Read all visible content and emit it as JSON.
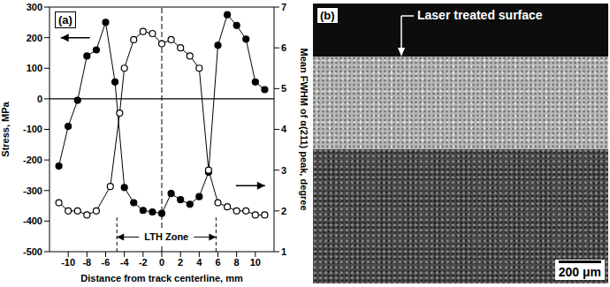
{
  "chart_data": {
    "type": "line",
    "panel": "(a)",
    "xlabel": "Distance from track centerline, mm",
    "ylabel": "Stress, MPa",
    "y2label": "Mean FWHM of α(211) peak, degree",
    "xlim": [
      -12,
      12
    ],
    "xticks": [
      -10,
      -8,
      -6,
      -4,
      -2,
      0,
      2,
      4,
      6,
      8,
      10
    ],
    "ylim": [
      -500,
      300
    ],
    "yticks": [
      -500,
      -400,
      -300,
      -200,
      -100,
      0,
      100,
      200,
      300
    ],
    "y2lim": [
      1,
      7
    ],
    "y2ticks": [
      1,
      2,
      3,
      4,
      5,
      6,
      7
    ],
    "grid": false,
    "reference_lines": {
      "x": [
        0
      ],
      "y": [
        0
      ]
    },
    "annotations": [
      {
        "text": "LTH Zone",
        "x": [
          -4.8,
          5.8
        ]
      }
    ],
    "series": [
      {
        "axis": "y",
        "color": "#000000",
        "marker": "filled_circle",
        "line_style": "solid",
        "x": [
          -11,
          -10,
          -9,
          -8,
          -7,
          -6,
          -5,
          -4,
          -3,
          -2,
          -1,
          0,
          1,
          2,
          3,
          4,
          5,
          6,
          7,
          8,
          9,
          10,
          11
        ],
        "values": [
          -220,
          -90,
          -5,
          140,
          160,
          250,
          55,
          -290,
          -340,
          -365,
          -370,
          -375,
          -310,
          -330,
          -345,
          -320,
          -240,
          175,
          275,
          240,
          195,
          55,
          30
        ]
      },
      {
        "axis": "y2",
        "color": "#000000",
        "marker": "open_circle",
        "line_style": "solid",
        "x": [
          -11,
          -10,
          -9,
          -8,
          -7,
          -5.5,
          -4.5,
          -4,
          -3,
          -2,
          -1,
          0,
          1,
          2,
          3,
          4,
          5,
          6,
          7,
          8,
          9,
          10,
          11
        ],
        "values": [
          2.2,
          2.0,
          2.0,
          1.9,
          2.0,
          2.6,
          4.4,
          5.5,
          6.2,
          6.4,
          6.35,
          6.1,
          6.2,
          6.0,
          5.8,
          5.5,
          3.0,
          2.2,
          2.1,
          2.0,
          2.0,
          1.9,
          1.9
        ]
      }
    ]
  },
  "image_panel": {
    "panel": "(b)",
    "annotation": "Laser treated surface",
    "scale_bar": "200 μm"
  }
}
